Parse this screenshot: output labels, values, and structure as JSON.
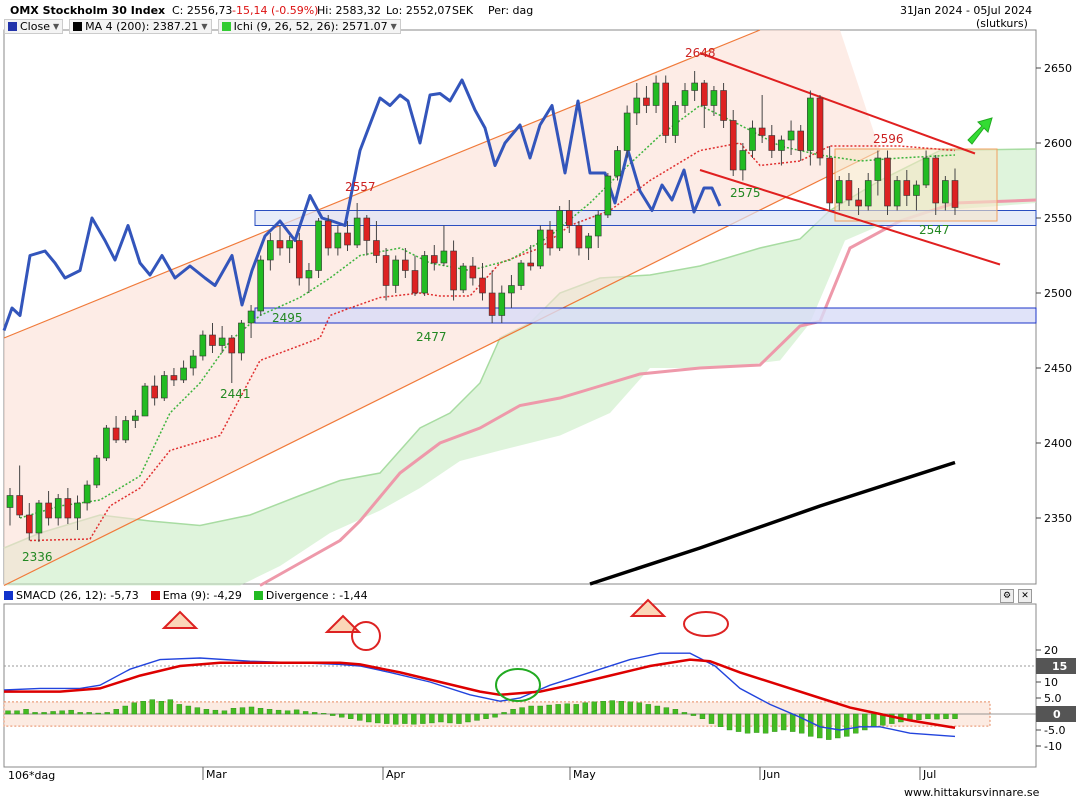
{
  "header": {
    "title": "OMX Stockholm 30 Index",
    "close": "C: 2556,73",
    "change": "-15,14 (-0.59%)",
    "high": "Hi: 2583,32",
    "low": "Lo: 2552,07",
    "currency": "SEK",
    "period": "Per: dag",
    "date_range": "31Jan 2024 - 05Jul 2024",
    "close_note": "(slutkurs)"
  },
  "legend": {
    "close": {
      "label": "Close",
      "color": "#3355bb"
    },
    "ma": {
      "label": "MA 4 (200): 2387.21",
      "color": "#000000"
    },
    "ichi": {
      "label": "Ichi (9, 26, 52, 26): 2571.07",
      "color": "#33cc33"
    }
  },
  "lower_legend": {
    "smacd": {
      "label": "SMACD (26, 12): -5,73",
      "color": "#0000ff"
    },
    "ema": {
      "label": "Ema (9): -4,29",
      "color": "#dd0000"
    },
    "divergence": {
      "label": "Divergence : -1,44",
      "color": "#22bb22"
    }
  },
  "watermark": "www.hittakursvinnare.se",
  "period_label": "106*dag",
  "chart_data": [
    {
      "type": "candlestick",
      "title": "OMX Stockholm 30 Index",
      "y_ticks": [
        2350,
        2400,
        2450,
        2500,
        2550,
        2600,
        2650
      ],
      "ylim": [
        2305,
        2670
      ],
      "x_labels": [
        "Mar",
        "Apr",
        "May",
        "Jun",
        "Jul"
      ],
      "price_annotations": [
        "2336",
        "2441",
        "2495",
        "2477",
        "2557",
        "2575",
        "2648",
        "2596",
        "2547"
      ],
      "candles": [
        [
          2357,
          2370,
          2345,
          2365
        ],
        [
          2365,
          2385,
          2350,
          2352
        ],
        [
          2352,
          2360,
          2335,
          2340
        ],
        [
          2340,
          2362,
          2334,
          2360
        ],
        [
          2360,
          2368,
          2345,
          2350
        ],
        [
          2350,
          2366,
          2345,
          2363
        ],
        [
          2363,
          2370,
          2346,
          2350
        ],
        [
          2350,
          2365,
          2342,
          2360
        ],
        [
          2360,
          2375,
          2355,
          2372
        ],
        [
          2372,
          2392,
          2370,
          2390
        ],
        [
          2390,
          2412,
          2388,
          2410
        ],
        [
          2410,
          2418,
          2400,
          2402
        ],
        [
          2402,
          2418,
          2400,
          2415
        ],
        [
          2415,
          2422,
          2410,
          2418
        ],
        [
          2418,
          2440,
          2418,
          2438
        ],
        [
          2438,
          2445,
          2425,
          2430
        ],
        [
          2430,
          2448,
          2428,
          2445
        ],
        [
          2445,
          2450,
          2438,
          2442
        ],
        [
          2442,
          2455,
          2440,
          2450
        ],
        [
          2450,
          2462,
          2445,
          2458
        ],
        [
          2458,
          2475,
          2455,
          2472
        ],
        [
          2472,
          2480,
          2460,
          2465
        ],
        [
          2465,
          2478,
          2460,
          2470
        ],
        [
          2470,
          2472,
          2440,
          2460
        ],
        [
          2460,
          2482,
          2455,
          2480
        ],
        [
          2480,
          2492,
          2470,
          2488
        ],
        [
          2488,
          2525,
          2485,
          2522
        ],
        [
          2522,
          2540,
          2515,
          2535
        ],
        [
          2535,
          2545,
          2525,
          2530
        ],
        [
          2530,
          2538,
          2520,
          2535
        ],
        [
          2535,
          2540,
          2505,
          2510
        ],
        [
          2510,
          2520,
          2500,
          2515
        ],
        [
          2515,
          2550,
          2510,
          2548
        ],
        [
          2548,
          2552,
          2525,
          2530
        ],
        [
          2530,
          2545,
          2525,
          2540
        ],
        [
          2540,
          2548,
          2528,
          2532
        ],
        [
          2532,
          2560,
          2530,
          2550
        ],
        [
          2550,
          2552,
          2525,
          2535
        ],
        [
          2535,
          2548,
          2520,
          2525
        ],
        [
          2525,
          2530,
          2495,
          2505
        ],
        [
          2505,
          2525,
          2500,
          2522
        ],
        [
          2522,
          2530,
          2510,
          2515
        ],
        [
          2515,
          2525,
          2498,
          2500
        ],
        [
          2500,
          2528,
          2498,
          2525
        ],
        [
          2525,
          2532,
          2515,
          2520
        ],
        [
          2520,
          2545,
          2518,
          2528
        ],
        [
          2528,
          2535,
          2495,
          2502
        ],
        [
          2502,
          2520,
          2500,
          2518
        ],
        [
          2518,
          2524,
          2505,
          2510
        ],
        [
          2510,
          2520,
          2495,
          2500
        ],
        [
          2500,
          2515,
          2480,
          2485
        ],
        [
          2485,
          2505,
          2480,
          2500
        ],
        [
          2500,
          2512,
          2490,
          2505
        ],
        [
          2505,
          2522,
          2502,
          2520
        ],
        [
          2520,
          2532,
          2515,
          2518
        ],
        [
          2518,
          2545,
          2516,
          2542
        ],
        [
          2542,
          2548,
          2525,
          2530
        ],
        [
          2530,
          2558,
          2528,
          2555
        ],
        [
          2555,
          2562,
          2540,
          2545
        ],
        [
          2545,
          2548,
          2525,
          2530
        ],
        [
          2530,
          2540,
          2522,
          2538
        ],
        [
          2538,
          2555,
          2530,
          2552
        ],
        [
          2552,
          2580,
          2550,
          2578
        ],
        [
          2578,
          2598,
          2575,
          2595
        ],
        [
          2595,
          2625,
          2590,
          2620
        ],
        [
          2620,
          2640,
          2612,
          2630
        ],
        [
          2630,
          2638,
          2620,
          2625
        ],
        [
          2625,
          2645,
          2620,
          2640
        ],
        [
          2640,
          2645,
          2600,
          2605
        ],
        [
          2605,
          2628,
          2600,
          2625
        ],
        [
          2625,
          2640,
          2620,
          2635
        ],
        [
          2635,
          2648,
          2628,
          2640
        ],
        [
          2640,
          2642,
          2610,
          2625
        ],
        [
          2625,
          2638,
          2618,
          2635
        ],
        [
          2635,
          2640,
          2610,
          2615
        ],
        [
          2615,
          2622,
          2578,
          2582
        ],
        [
          2582,
          2600,
          2575,
          2595
        ],
        [
          2595,
          2615,
          2590,
          2610
        ],
        [
          2610,
          2632,
          2600,
          2605
        ],
        [
          2605,
          2612,
          2590,
          2595
        ],
        [
          2595,
          2605,
          2585,
          2602
        ],
        [
          2602,
          2615,
          2592,
          2608
        ],
        [
          2608,
          2612,
          2588,
          2595
        ],
        [
          2595,
          2635,
          2585,
          2630
        ],
        [
          2630,
          2632,
          2585,
          2590
        ],
        [
          2590,
          2598,
          2555,
          2560
        ],
        [
          2560,
          2578,
          2555,
          2575
        ],
        [
          2575,
          2580,
          2558,
          2562
        ],
        [
          2562,
          2570,
          2552,
          2558
        ],
        [
          2558,
          2580,
          2555,
          2575
        ],
        [
          2575,
          2595,
          2565,
          2590
        ],
        [
          2590,
          2595,
          2552,
          2558
        ],
        [
          2558,
          2578,
          2555,
          2575
        ],
        [
          2575,
          2582,
          2558,
          2565
        ],
        [
          2565,
          2575,
          2555,
          2572
        ],
        [
          2572,
          2595,
          2570,
          2590
        ],
        [
          2590,
          2592,
          2552,
          2560
        ],
        [
          2560,
          2578,
          2555,
          2575
        ],
        [
          2575,
          2583,
          2552,
          2557
        ]
      ]
    },
    {
      "type": "bar",
      "title": "SMACD (26, 12)",
      "y_ticks": [
        -10,
        -5.0,
        0,
        5.0,
        10,
        15,
        20
      ],
      "ylim": [
        -11,
        21
      ],
      "value_labels": {
        "smacd_marker": "15",
        "zero_marker": "0"
      }
    }
  ]
}
